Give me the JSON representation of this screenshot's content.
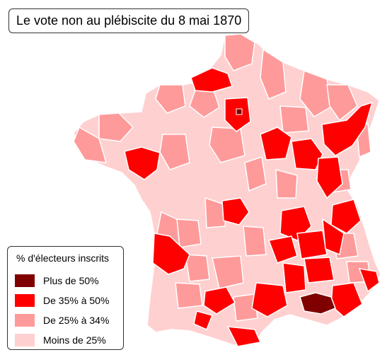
{
  "title": "Le vote non au plébiscite du 8 mai 1870",
  "legend": {
    "title": "% d'électeurs inscrits",
    "items": [
      {
        "label": "Plus de 50%",
        "color": "#800000"
      },
      {
        "label": "De 35% à 50%",
        "color": "#ff0000"
      },
      {
        "label": "De 25% à 34%",
        "color": "#ff9a9a"
      },
      {
        "label": "Moins de 25%",
        "color": "#ffd0d0"
      }
    ]
  },
  "colors": {
    "border": "#ffffff",
    "outline": "#9a9a9a"
  }
}
